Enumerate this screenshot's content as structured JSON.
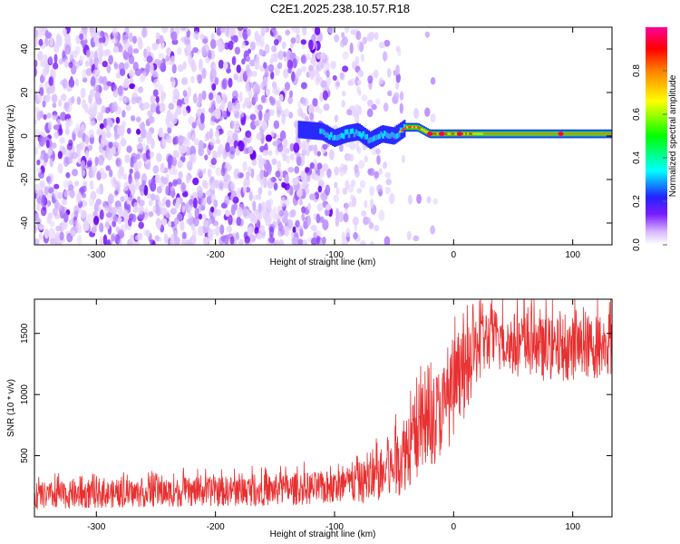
{
  "title": "C2E1.2025.238.10.57.R18",
  "chart_data": [
    {
      "type": "heatmap",
      "name": "spectrogram",
      "xlabel": "Height of straight line (km)",
      "ylabel": "Frequency (Hz)",
      "xlim": [
        -352,
        133
      ],
      "ylim": [
        -50,
        50
      ],
      "x_ticks": [
        -300,
        -200,
        -100,
        0,
        100
      ],
      "y_ticks": [
        -40,
        -20,
        0,
        20,
        40
      ],
      "colorbar": {
        "label": "Normalized spectral amplitude",
        "range": [
          0.0,
          1.0
        ],
        "ticks": [
          0.0,
          0.2,
          0.4,
          0.6,
          0.8
        ],
        "tick_labels": [
          "0.0",
          "0.2",
          "0.4",
          "0.6",
          "0.8"
        ]
      },
      "features": {
        "noise_region_km": [
          -352,
          -50
        ],
        "carrier_start_km": -130,
        "carrier_frequency_hz": [
          [
            -130,
            3
          ],
          [
            -110,
            2
          ],
          [
            -100,
            -1
          ],
          [
            -90,
            1
          ],
          [
            -80,
            2
          ],
          [
            -70,
            -2
          ],
          [
            -60,
            1
          ],
          [
            -50,
            0
          ],
          [
            -40,
            4
          ],
          [
            -30,
            4
          ],
          [
            -20,
            1
          ],
          [
            0,
            1
          ],
          [
            50,
            1
          ],
          [
            100,
            1
          ],
          [
            133,
            1
          ]
        ]
      }
    },
    {
      "type": "line",
      "name": "snr",
      "xlabel": "Height of straight line (km)",
      "ylabel": "SNR (10 * v/v)",
      "xlim": [
        -352,
        133
      ],
      "ylim": [
        0,
        1780
      ],
      "x_ticks": [
        -300,
        -200,
        -100,
        0,
        100
      ],
      "y_ticks": [
        500,
        1000,
        1500
      ],
      "color": "#e83030",
      "envelope": {
        "x": [
          -352,
          -250,
          -150,
          -100,
          -70,
          -50,
          -40,
          -30,
          -20,
          -10,
          0,
          10,
          20,
          30,
          50,
          80,
          100,
          133
        ],
        "low": [
          60,
          80,
          90,
          100,
          110,
          140,
          220,
          300,
          380,
          500,
          620,
          820,
          1100,
          1180,
          1150,
          1100,
          1120,
          1130
        ],
        "high": [
          280,
          310,
          350,
          380,
          480,
          650,
          900,
          1050,
          1150,
          1250,
          1380,
          1500,
          1700,
          1720,
          1680,
          1620,
          1640,
          1680
        ]
      }
    }
  ]
}
